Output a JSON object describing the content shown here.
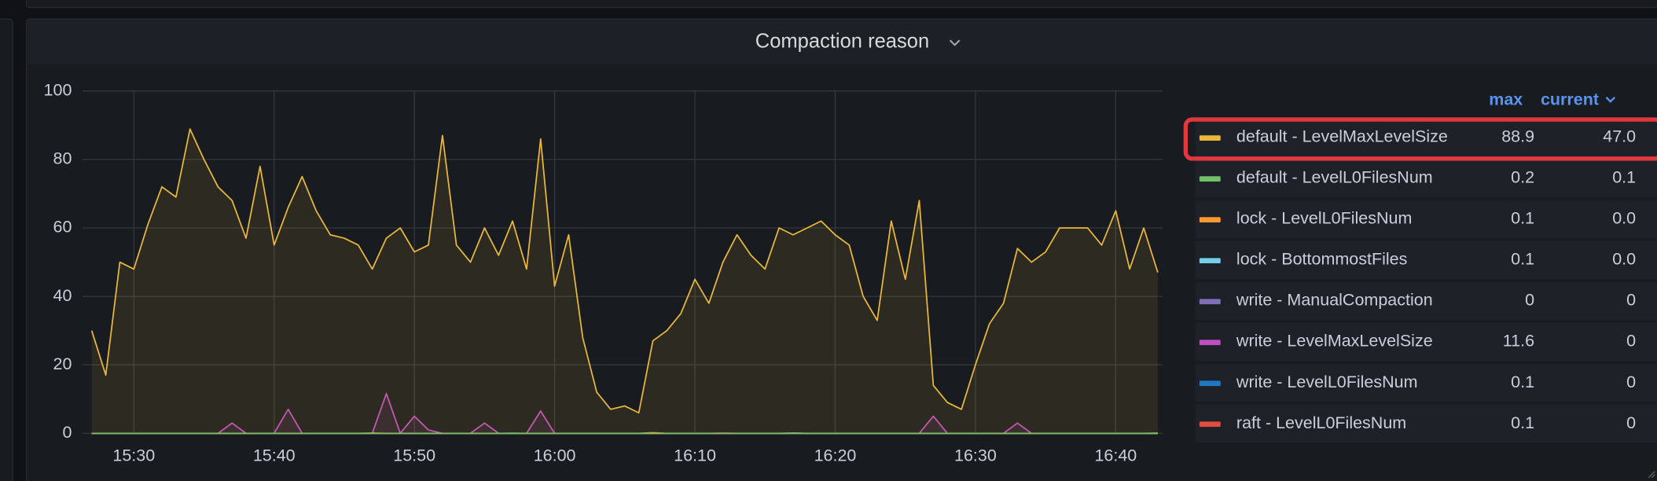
{
  "chart_data": {
    "type": "line",
    "title": "Compaction reason",
    "x": [
      "15:27",
      "15:28",
      "15:29",
      "15:30",
      "15:31",
      "15:32",
      "15:33",
      "15:34",
      "15:35",
      "15:36",
      "15:37",
      "15:38",
      "15:39",
      "15:40",
      "15:41",
      "15:42",
      "15:43",
      "15:44",
      "15:45",
      "15:46",
      "15:47",
      "15:48",
      "15:49",
      "15:50",
      "15:51",
      "15:52",
      "15:53",
      "15:54",
      "15:55",
      "15:56",
      "15:57",
      "15:58",
      "15:59",
      "16:00",
      "16:01",
      "16:02",
      "16:03",
      "16:04",
      "16:05",
      "16:06",
      "16:07",
      "16:08",
      "16:09",
      "16:10",
      "16:11",
      "16:12",
      "16:13",
      "16:14",
      "16:15",
      "16:16",
      "16:17",
      "16:18",
      "16:19",
      "16:20",
      "16:21",
      "16:22",
      "16:23",
      "16:24",
      "16:25",
      "16:26",
      "16:27",
      "16:28",
      "16:29",
      "16:30",
      "16:31",
      "16:32",
      "16:33",
      "16:34",
      "16:35",
      "16:36",
      "16:37",
      "16:38",
      "16:39",
      "16:40",
      "16:41",
      "16:42",
      "16:43"
    ],
    "xlim": [
      "15:26:20",
      "16:43:20"
    ],
    "xticks": [
      "15:30",
      "15:40",
      "15:50",
      "16:00",
      "16:10",
      "16:20",
      "16:30",
      "16:40"
    ],
    "ylim": [
      0,
      100
    ],
    "yticks": [
      0,
      20,
      40,
      60,
      80,
      100
    ],
    "grid": true,
    "legend_columns": [
      "max",
      "current"
    ],
    "series": [
      {
        "name": "default - LevelMaxLevelSize",
        "color": "#eab839",
        "max": "88.9",
        "current": "47.0",
        "values": [
          30,
          17,
          50,
          48,
          61,
          72,
          69,
          88.9,
          80,
          72,
          68,
          57,
          78,
          55,
          66,
          75,
          65,
          58,
          57,
          55,
          48,
          57,
          60,
          53,
          55,
          87,
          55,
          50,
          60,
          52,
          62,
          48,
          86,
          43,
          58,
          28,
          12,
          7,
          8,
          6,
          27,
          30,
          35,
          45,
          38,
          50,
          58,
          52,
          48,
          60,
          58,
          60,
          62,
          58,
          55,
          40,
          33,
          62,
          45,
          68,
          14,
          9,
          7,
          20,
          32,
          38,
          54,
          50,
          53,
          60,
          60,
          60,
          55,
          65,
          48,
          60,
          47
        ]
      },
      {
        "name": "default - LevelL0FilesNum",
        "color": "#73bf69",
        "max": "0.2",
        "current": "0.1",
        "values": [
          0,
          0,
          0,
          0,
          0,
          0,
          0,
          0,
          0,
          0,
          0,
          0,
          0,
          0,
          0,
          0,
          0,
          0,
          0,
          0,
          0,
          0,
          0,
          0,
          0,
          0,
          0,
          0,
          0,
          0,
          0,
          0,
          0,
          0,
          0,
          0,
          0,
          0,
          0,
          0,
          0.2,
          0,
          0,
          0,
          0,
          0,
          0,
          0,
          0,
          0,
          0,
          0,
          0,
          0,
          0,
          0,
          0,
          0,
          0,
          0,
          0,
          0,
          0,
          0,
          0,
          0,
          0,
          0,
          0,
          0,
          0,
          0,
          0,
          0,
          0,
          0,
          0.1
        ]
      },
      {
        "name": "lock - LevelL0FilesNum",
        "color": "#ff9830",
        "max": "0.1",
        "current": "0.0",
        "values": [
          0,
          0,
          0,
          0,
          0,
          0,
          0,
          0,
          0,
          0,
          0,
          0,
          0,
          0,
          0,
          0,
          0,
          0,
          0,
          0,
          0.1,
          0,
          0,
          0,
          0,
          0,
          0,
          0,
          0,
          0,
          0,
          0,
          0,
          0,
          0,
          0,
          0,
          0,
          0,
          0,
          0,
          0,
          0,
          0,
          0,
          0,
          0,
          0,
          0,
          0,
          0,
          0,
          0,
          0,
          0,
          0,
          0,
          0,
          0,
          0,
          0,
          0,
          0,
          0,
          0,
          0,
          0,
          0,
          0,
          0,
          0,
          0,
          0,
          0,
          0,
          0,
          0
        ]
      },
      {
        "name": "lock - BottommostFiles",
        "color": "#73d0e8",
        "max": "0.1",
        "current": "0.0",
        "values": [
          0,
          0,
          0,
          0,
          0,
          0,
          0,
          0,
          0,
          0,
          0,
          0,
          0,
          0,
          0,
          0,
          0,
          0,
          0,
          0,
          0,
          0,
          0,
          0,
          0,
          0,
          0,
          0,
          0,
          0,
          0,
          0,
          0,
          0,
          0,
          0,
          0,
          0,
          0,
          0,
          0,
          0,
          0,
          0,
          0,
          0,
          0,
          0,
          0,
          0,
          0.1,
          0,
          0,
          0,
          0,
          0,
          0,
          0,
          0,
          0,
          0,
          0,
          0,
          0,
          0,
          0,
          0,
          0,
          0,
          0,
          0,
          0,
          0,
          0,
          0,
          0,
          0
        ]
      },
      {
        "name": "write - ManualCompaction",
        "color": "#806eb7",
        "max": "0",
        "current": "0",
        "values": [
          0,
          0,
          0,
          0,
          0,
          0,
          0,
          0,
          0,
          0,
          0,
          0,
          0,
          0,
          0,
          0,
          0,
          0,
          0,
          0,
          0,
          0,
          0,
          0,
          0,
          0,
          0,
          0,
          0,
          0,
          0,
          0,
          0,
          0,
          0,
          0,
          0,
          0,
          0,
          0,
          0,
          0,
          0,
          0,
          0,
          0,
          0,
          0,
          0,
          0,
          0,
          0,
          0,
          0,
          0,
          0,
          0,
          0,
          0,
          0,
          0,
          0,
          0,
          0,
          0,
          0,
          0,
          0,
          0,
          0,
          0,
          0,
          0,
          0,
          0,
          0,
          0
        ]
      },
      {
        "name": "write - LevelMaxLevelSize",
        "color": "#c04fc0",
        "max": "11.6",
        "current": "0",
        "values": [
          0,
          0,
          0,
          0,
          0,
          0,
          0,
          0,
          0,
          0,
          3,
          0,
          0,
          0,
          7,
          0,
          0,
          0,
          0,
          0,
          0,
          11.6,
          0,
          5,
          1,
          0,
          0,
          0,
          3,
          0,
          0,
          0,
          6.5,
          0,
          0,
          0,
          0,
          0,
          0,
          0,
          0,
          0,
          0,
          0,
          0,
          0,
          0,
          0,
          0,
          0,
          0,
          0,
          0,
          0,
          0,
          0,
          0,
          0,
          0,
          0,
          5,
          0,
          0,
          0,
          0,
          0,
          3,
          0,
          0,
          0,
          0,
          0,
          0,
          0,
          0,
          0,
          0
        ]
      },
      {
        "name": "write - LevelL0FilesNum",
        "color": "#1f78c1",
        "max": "0.1",
        "current": "0",
        "values": [
          0,
          0,
          0,
          0,
          0,
          0,
          0,
          0,
          0,
          0,
          0,
          0,
          0,
          0,
          0,
          0,
          0,
          0,
          0,
          0,
          0,
          0,
          0,
          0,
          0,
          0,
          0,
          0,
          0,
          0,
          0.1,
          0,
          0,
          0,
          0,
          0,
          0,
          0,
          0,
          0,
          0,
          0,
          0,
          0,
          0,
          0,
          0,
          0,
          0,
          0,
          0,
          0,
          0,
          0,
          0,
          0,
          0,
          0,
          0,
          0,
          0,
          0,
          0,
          0,
          0,
          0,
          0,
          0,
          0,
          0,
          0,
          0,
          0,
          0,
          0,
          0,
          0
        ]
      },
      {
        "name": "raft - LevelL0FilesNum",
        "color": "#e24d42",
        "max": "0.1",
        "current": "0",
        "values": [
          0,
          0,
          0,
          0,
          0,
          0,
          0,
          0,
          0,
          0,
          0,
          0,
          0,
          0,
          0,
          0,
          0,
          0,
          0,
          0,
          0,
          0,
          0,
          0,
          0,
          0,
          0,
          0,
          0,
          0,
          0,
          0,
          0,
          0,
          0,
          0,
          0,
          0,
          0,
          0,
          0,
          0,
          0,
          0,
          0,
          0.1,
          0,
          0,
          0,
          0,
          0,
          0,
          0,
          0,
          0,
          0,
          0,
          0,
          0,
          0,
          0,
          0,
          0,
          0,
          0,
          0,
          0,
          0,
          0,
          0,
          0,
          0,
          0,
          0,
          0,
          0,
          0
        ]
      }
    ]
  }
}
